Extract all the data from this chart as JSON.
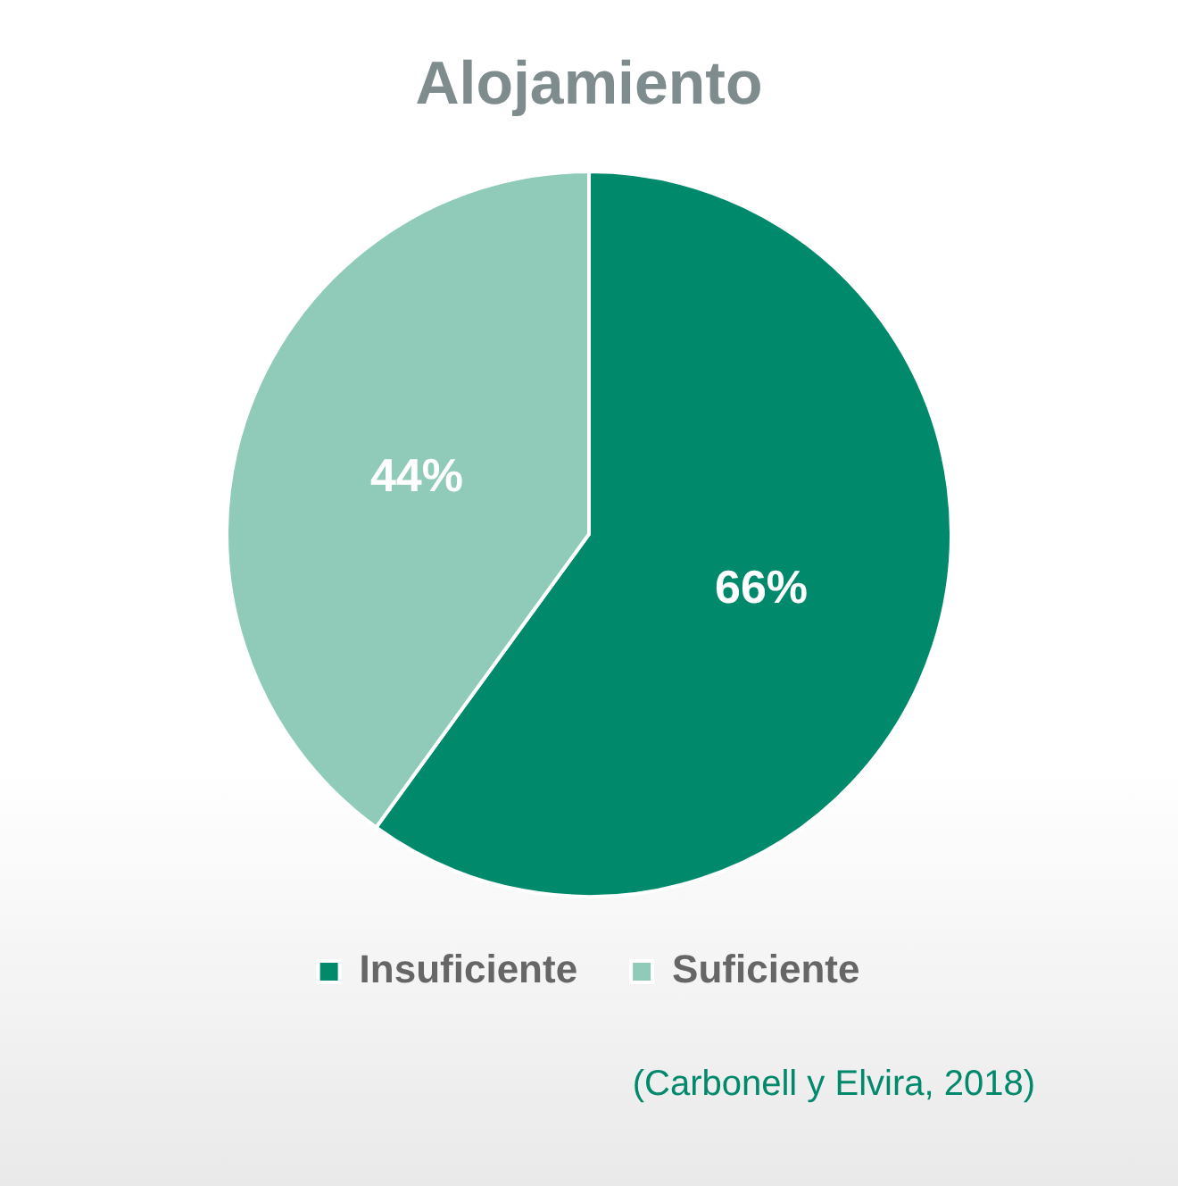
{
  "chart_data": {
    "type": "pie",
    "title": "Alojamiento",
    "categories": [
      "Insuficiente",
      "Suficiente"
    ],
    "values": [
      66,
      44
    ],
    "colors": [
      "#00896b",
      "#8fcbb8"
    ],
    "value_labels": [
      "66%",
      "44%"
    ],
    "legend": "bottom",
    "annotations": [
      "(Carbonell y Elvira, 2018)"
    ]
  }
}
